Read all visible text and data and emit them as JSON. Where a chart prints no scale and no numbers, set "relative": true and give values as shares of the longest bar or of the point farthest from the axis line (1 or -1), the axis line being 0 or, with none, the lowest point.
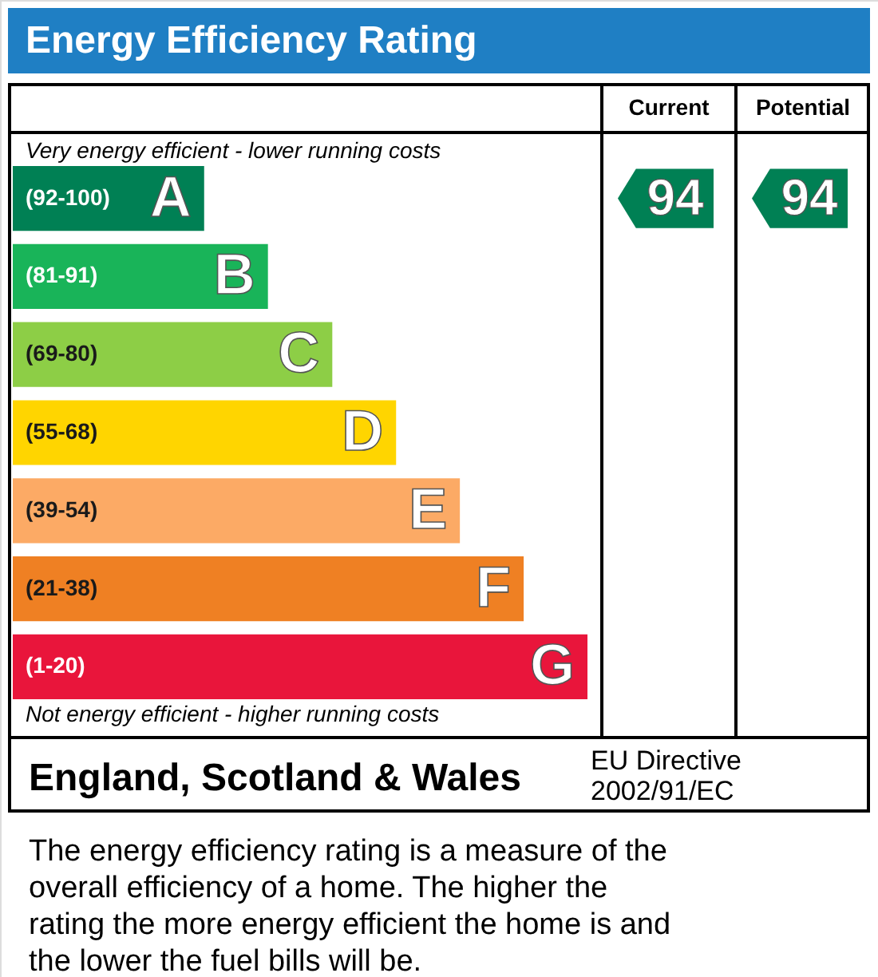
{
  "chart_data": {
    "type": "bar",
    "orientation": "horizontal",
    "relative": true,
    "title": "Energy Efficiency Rating",
    "categories": [
      "A",
      "B",
      "C",
      "D",
      "E",
      "F",
      "G"
    ],
    "values": [
      0.333,
      0.444,
      0.556,
      0.667,
      0.778,
      0.889,
      1
    ],
    "colors": [
      "#008054",
      "#19b459",
      "#8dce46",
      "#ffd500",
      "#fcaa65",
      "#ef8023",
      "#e9153b"
    ],
    "annotations": [
      "Very energy efficient - lower running costs",
      "Not energy efficient - higher running costs",
      "Current",
      "Potential",
      "94",
      "94",
      "England, Scotland & Wales",
      "EU Directive",
      "2002/91/EC",
      "The energy efficiency rating is a measure of the overall efficiency of a home. The higher the rating the more energy efficient the home is and the lower the fuel bills will be.",
      "(92-100)",
      "(81-91)",
      "(69-80)",
      "(55-68)",
      "(39-54)",
      "(21-38)",
      "(1-20)"
    ]
  }
}
